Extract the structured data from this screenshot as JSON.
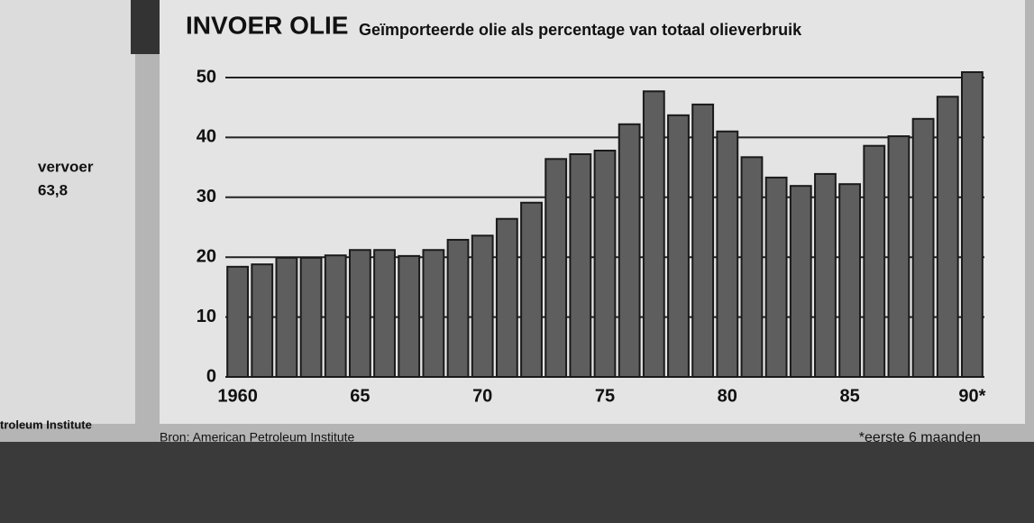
{
  "chart_data": {
    "type": "bar",
    "title": "INVOER OLIE",
    "subtitle": "Geïmporteerde olie als percentage van totaal olieverbruik",
    "source": "Bron: American Petroleum Institute",
    "note": "*eerste 6 maanden",
    "side_label": "vervoer",
    "side_value": "63,8",
    "side_source": "troleum Institute",
    "categories": [
      "1960",
      null,
      null,
      null,
      null,
      "65",
      null,
      null,
      null,
      null,
      "70",
      null,
      null,
      null,
      null,
      "75",
      null,
      null,
      null,
      null,
      "80",
      null,
      null,
      null,
      null,
      "85",
      null,
      null,
      null,
      null,
      "90*"
    ],
    "values": [
      18.4,
      18.8,
      19.9,
      19.9,
      20.3,
      21.2,
      21.2,
      20.2,
      21.2,
      22.9,
      23.6,
      26.4,
      29.1,
      36.4,
      37.2,
      37.8,
      42.2,
      47.7,
      43.7,
      45.5,
      41.0,
      36.7,
      33.3,
      31.9,
      33.9,
      32.2,
      38.6,
      40.2,
      43.1,
      46.8,
      50.9
    ],
    "color": "#5e5e5e",
    "ylim": [
      0,
      50
    ],
    "yticks": [
      0,
      10,
      20,
      30,
      40,
      50
    ],
    "grid": true
  }
}
